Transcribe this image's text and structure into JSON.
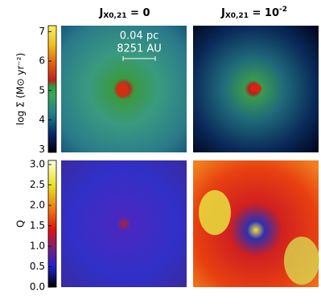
{
  "chart_data": [
    {
      "type": "heatmap",
      "column_titles": [
        {
          "main": "J",
          "sub": "X0,21",
          "rest": " = 0"
        },
        {
          "main": "J",
          "sub": "X0,21",
          "rest": " = 10",
          "sup": "-2"
        }
      ],
      "colorbar_label": "log Σ (M⊙ yr⁻²)",
      "clim": [
        2.9,
        7.2
      ],
      "cticks": [
        3,
        4,
        5,
        6,
        7
      ],
      "annotations": [
        "0.04 pc",
        "8251 AU"
      ]
    },
    {
      "type": "heatmap",
      "colorbar_label": "Q",
      "clim": [
        0,
        3.1
      ],
      "cticks": [
        {
          "value": 0,
          "label": "0.0"
        },
        0.5,
        {
          "value": 1,
          "label": "1.0"
        },
        1.5,
        {
          "value": 2,
          "label": "2.0"
        },
        2.5,
        {
          "value": 3,
          "label": "3.0"
        }
      ]
    }
  ]
}
